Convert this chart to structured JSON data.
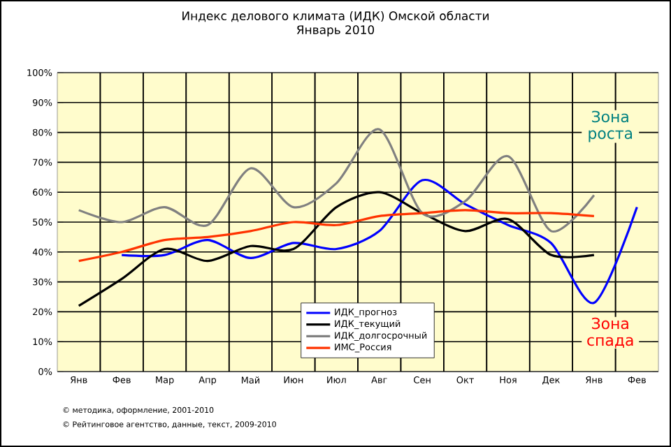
{
  "chart_data": {
    "type": "line",
    "title": "Индекс делового климата (ИДК) Омской области",
    "subtitle": "Январь 2010",
    "categories": [
      "Янв",
      "Фев",
      "Мар",
      "Апр",
      "Май",
      "Июн",
      "Июл",
      "Авг",
      "Сен",
      "Окт",
      "Ноя",
      "Дек",
      "Янв",
      "Фев"
    ],
    "series": [
      {
        "name": "ИДК_прогноз",
        "color": "#0000ff",
        "values": [
          null,
          39,
          39,
          44,
          38,
          43,
          41,
          47,
          64,
          56,
          49,
          43,
          23,
          55
        ]
      },
      {
        "name": "ИДК_текущий",
        "color": "#000000",
        "values": [
          22,
          31,
          41,
          37,
          42,
          41,
          55,
          60,
          53,
          47,
          51,
          39,
          39,
          null
        ]
      },
      {
        "name": "ИДК_долгосрочный",
        "color": "#808080",
        "values": [
          54,
          50,
          55,
          49,
          68,
          55,
          63,
          81,
          53,
          57,
          72,
          47,
          59,
          null
        ]
      },
      {
        "name": "ИМС_Россия",
        "color": "#ff3300",
        "values": [
          37,
          40,
          44,
          45,
          47,
          50,
          49,
          52,
          53,
          54,
          53,
          53,
          52,
          null
        ]
      }
    ],
    "ylim": [
      0,
      100
    ],
    "yticks": [
      {
        "value": 0,
        "label": "0%"
      },
      {
        "value": 10,
        "label": "10%"
      },
      {
        "value": 20,
        "label": "20%"
      },
      {
        "value": 30,
        "label": "30%"
      },
      {
        "value": 40,
        "label": "40%"
      },
      {
        "value": 50,
        "label": "50%"
      },
      {
        "value": 60,
        "label": "60%"
      },
      {
        "value": 70,
        "label": "70%"
      },
      {
        "value": 80,
        "label": "80%"
      },
      {
        "value": 90,
        "label": "90%"
      },
      {
        "value": 100,
        "label": "100%"
      }
    ],
    "grid": true,
    "legend": "bottom",
    "line_style": "solid",
    "marker": "none",
    "annotations": [
      "Зона роста",
      "Зона спада",
      "© методика, оформление, 2001-2010",
      "© Рейтинговое агентство, данные, текст, 2009-2010"
    ]
  }
}
